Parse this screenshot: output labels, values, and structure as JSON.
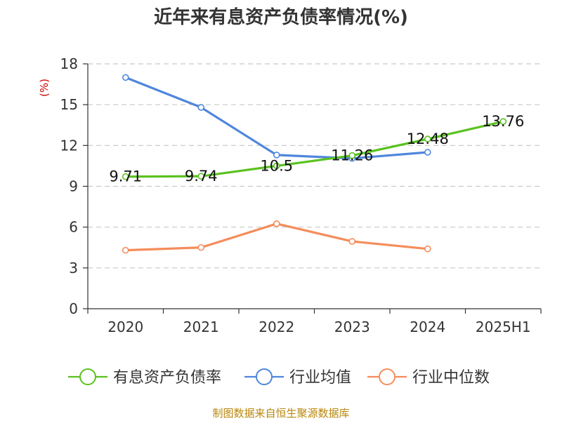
{
  "chart_data": {
    "type": "line",
    "title": "近年来有息资产负债率情况(%)",
    "ylabel": "(%)",
    "xlabel": "",
    "categories": [
      "2020",
      "2021",
      "2022",
      "2023",
      "2024",
      "2025H1"
    ],
    "ylim": [
      0,
      18
    ],
    "yticks": [
      0,
      3,
      6,
      9,
      12,
      15,
      18
    ],
    "grid": true,
    "legend_position": "bottom",
    "series": [
      {
        "name": "有息资产负债率",
        "color": "#5ac21f",
        "values": [
          9.71,
          9.74,
          10.5,
          11.26,
          12.48,
          13.76
        ],
        "labels": [
          "9.71",
          "9.74",
          "10.5",
          "11.26",
          "12.48",
          "13.76"
        ]
      },
      {
        "name": "行业均值",
        "color": "#4f86dd",
        "values": [
          17.0,
          14.8,
          11.3,
          11.05,
          11.5,
          null
        ]
      },
      {
        "name": "行业中位数",
        "color": "#f58c5a",
        "values": [
          4.3,
          4.5,
          6.25,
          4.95,
          4.4,
          null
        ]
      }
    ],
    "source": "制图数据来自恒生聚源数据库"
  }
}
